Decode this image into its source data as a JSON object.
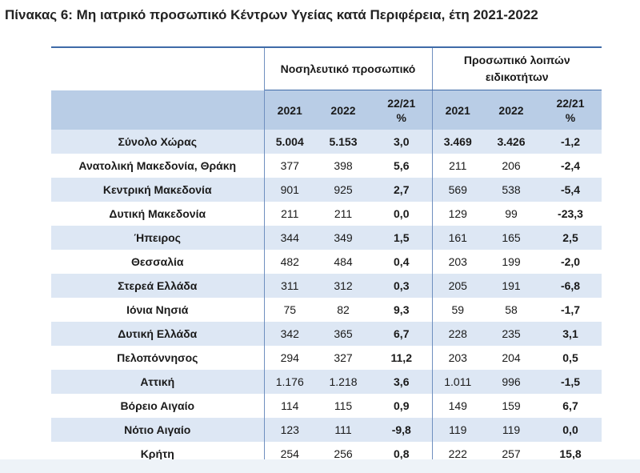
{
  "title": "Πίνακας 6: Μη ιατρικό προσωπικό Κέντρων Υγείας κατά Περιφέρεια, έτη 2021-2022",
  "groups": {
    "nursing": "Νοσηλευτικό προσωπικό",
    "other_line1": "Προσωπικό λοιπών",
    "other_line2": "ειδικοτήτων"
  },
  "columns": {
    "y2021": "2021",
    "y2022": "2022",
    "change_line1": "22/21",
    "change_line2": "%"
  },
  "rows": [
    {
      "region": "Σύνολο Χώρας",
      "n2021": "5.004",
      "n2022": "5.153",
      "nchg": "3,0",
      "o2021": "3.469",
      "o2022": "3.426",
      "ochg": "-1,2"
    },
    {
      "region": "Ανατολική Μακεδονία, Θράκη",
      "n2021": "377",
      "n2022": "398",
      "nchg": "5,6",
      "o2021": "211",
      "o2022": "206",
      "ochg": "-2,4"
    },
    {
      "region": "Κεντρική Μακεδονία",
      "n2021": "901",
      "n2022": "925",
      "nchg": "2,7",
      "o2021": "569",
      "o2022": "538",
      "ochg": "-5,4"
    },
    {
      "region": "Δυτική Μακεδονία",
      "n2021": "211",
      "n2022": "211",
      "nchg": "0,0",
      "o2021": "129",
      "o2022": "99",
      "ochg": "-23,3"
    },
    {
      "region": "Ήπειρος",
      "n2021": "344",
      "n2022": "349",
      "nchg": "1,5",
      "o2021": "161",
      "o2022": "165",
      "ochg": "2,5"
    },
    {
      "region": "Θεσσαλία",
      "n2021": "482",
      "n2022": "484",
      "nchg": "0,4",
      "o2021": "203",
      "o2022": "199",
      "ochg": "-2,0"
    },
    {
      "region": "Στερεά Ελλάδα",
      "n2021": "311",
      "n2022": "312",
      "nchg": "0,3",
      "o2021": "205",
      "o2022": "191",
      "ochg": "-6,8"
    },
    {
      "region": "Ιόνια Νησιά",
      "n2021": "75",
      "n2022": "82",
      "nchg": "9,3",
      "o2021": "59",
      "o2022": "58",
      "ochg": "-1,7"
    },
    {
      "region": "Δυτική Ελλάδα",
      "n2021": "342",
      "n2022": "365",
      "nchg": "6,7",
      "o2021": "228",
      "o2022": "235",
      "ochg": "3,1"
    },
    {
      "region": "Πελοπόννησος",
      "n2021": "294",
      "n2022": "327",
      "nchg": "11,2",
      "o2021": "203",
      "o2022": "204",
      "ochg": "0,5"
    },
    {
      "region": "Αττική",
      "n2021": "1.176",
      "n2022": "1.218",
      "nchg": "3,6",
      "o2021": "1.011",
      "o2022": "996",
      "ochg": "-1,5"
    },
    {
      "region": "Βόρειο Αιγαίο",
      "n2021": "114",
      "n2022": "115",
      "nchg": "0,9",
      "o2021": "149",
      "o2022": "159",
      "ochg": "6,7"
    },
    {
      "region": "Νότιο Αιγαίο",
      "n2021": "123",
      "n2022": "111",
      "nchg": "-9,8",
      "o2021": "119",
      "o2022": "119",
      "ochg": "0,0"
    },
    {
      "region": "Κρήτη",
      "n2021": "254",
      "n2022": "256",
      "nchg": "0,8",
      "o2021": "222",
      "o2022": "257",
      "ochg": "15,8"
    }
  ]
}
